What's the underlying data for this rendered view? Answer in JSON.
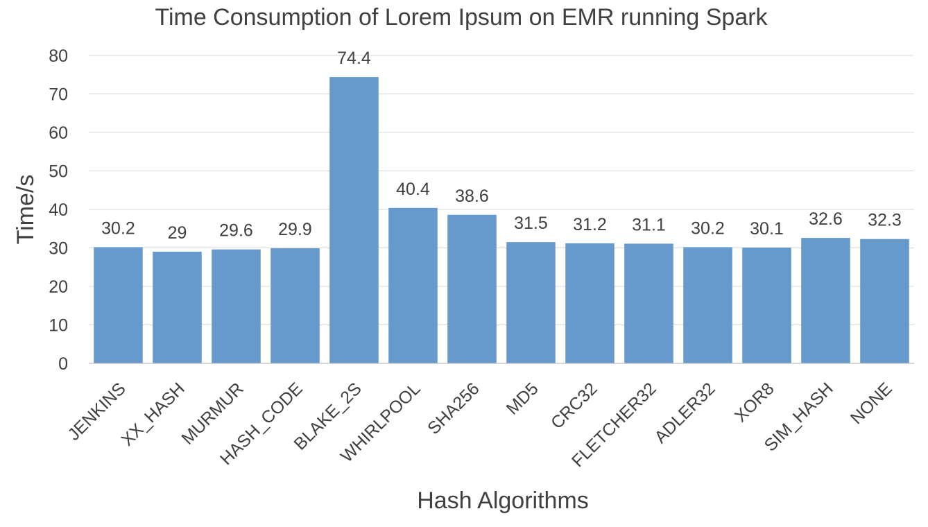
{
  "chart_data": {
    "type": "bar",
    "title": "Time Consumption of Lorem Ipsum on EMR running Spark",
    "xlabel": "Hash Algorithms",
    "ylabel": "Time/s",
    "ylim": [
      0,
      80
    ],
    "yticks": [
      0,
      10,
      20,
      30,
      40,
      50,
      60,
      70,
      80
    ],
    "grid": true,
    "legend": "none",
    "bar_color": "#6699cc",
    "categories": [
      "JENKINS",
      "XX_HASH",
      "MURMUR",
      "HASH_CODE",
      "BLAKE_2S",
      "WHIRLPOOL",
      "SHA256",
      "MD5",
      "CRC32",
      "FLETCHER32",
      "ADLER32",
      "XOR8",
      "SIM_HASH",
      "NONE"
    ],
    "values": [
      30.2,
      29,
      29.6,
      29.9,
      74.4,
      40.4,
      38.6,
      31.5,
      31.2,
      31.1,
      30.2,
      30.1,
      32.6,
      32.3
    ],
    "value_labels": [
      "30.2",
      "29",
      "29.6",
      "29.9",
      "74.4",
      "40.4",
      "38.6",
      "31.5",
      "31.2",
      "31.1",
      "30.2",
      "30.1",
      "32.6",
      "32.3"
    ]
  }
}
